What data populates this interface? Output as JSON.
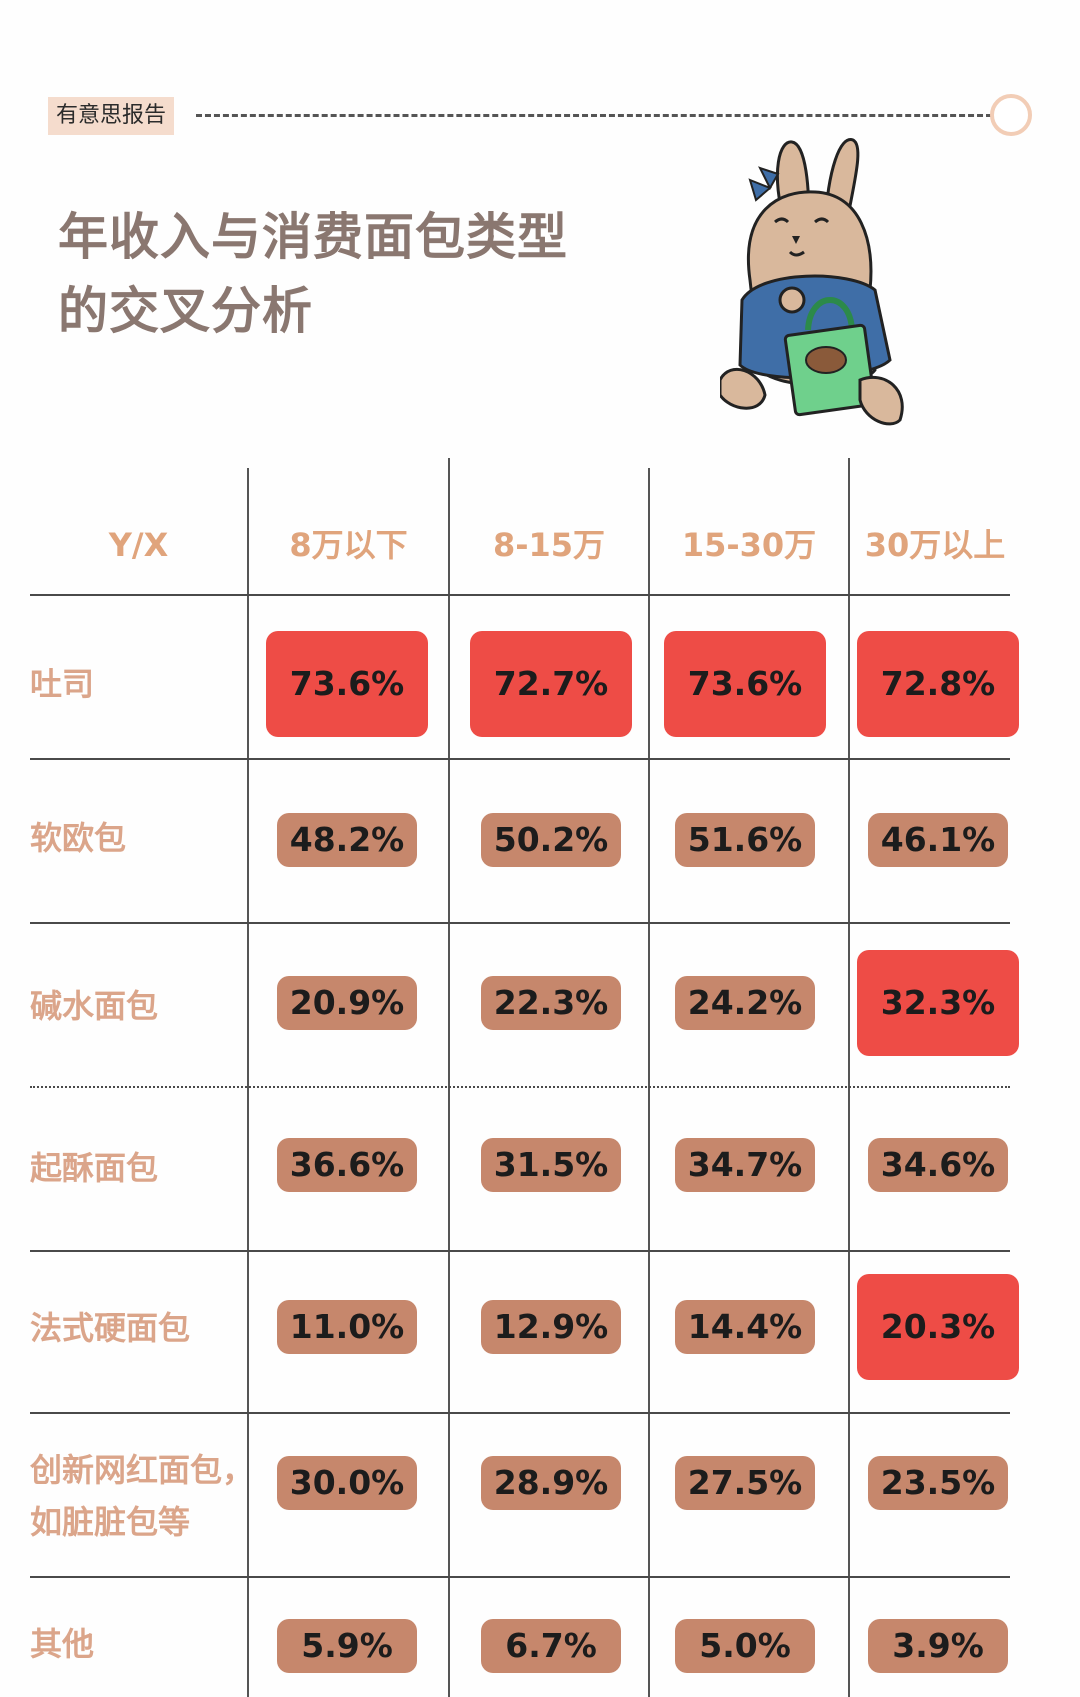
{
  "brand_tag": "有意思报告",
  "title_line1": "年收入与消费面包类型",
  "title_line2": "的交叉分析",
  "table": {
    "corner_label": "Y/X",
    "columns": [
      "8万以下",
      "8-15万",
      "15-30万",
      "30万以上"
    ],
    "rows": [
      {
        "label": "吐司",
        "values": [
          "73.6%",
          "72.7%",
          "73.6%",
          "72.8%"
        ],
        "highlight": [
          true,
          true,
          true,
          true
        ]
      },
      {
        "label": "软欧包",
        "values": [
          "48.2%",
          "50.2%",
          "51.6%",
          "46.1%"
        ],
        "highlight": [
          false,
          false,
          false,
          false
        ]
      },
      {
        "label": "碱水面包",
        "values": [
          "20.9%",
          "22.3%",
          "24.2%",
          "32.3%"
        ],
        "highlight": [
          false,
          false,
          false,
          true
        ]
      },
      {
        "label": "起酥面包",
        "values": [
          "36.6%",
          "31.5%",
          "34.7%",
          "34.6%"
        ],
        "highlight": [
          false,
          false,
          false,
          false
        ]
      },
      {
        "label": "法式硬面包",
        "values": [
          "11.0%",
          "12.9%",
          "14.4%",
          "20.3%"
        ],
        "highlight": [
          false,
          false,
          false,
          true
        ]
      },
      {
        "label_line1": "创新网红面包，",
        "label_line2": "如脏脏包等",
        "values": [
          "30.0%",
          "28.9%",
          "27.5%",
          "23.5%"
        ],
        "highlight": [
          false,
          false,
          false,
          false
        ]
      },
      {
        "label": "其他",
        "values": [
          "5.9%",
          "6.7%",
          "5.0%",
          "3.9%"
        ],
        "highlight": [
          false,
          false,
          false,
          false
        ]
      }
    ]
  },
  "colors": {
    "pill": "#c6876c",
    "highlight": "#ee4c46",
    "header_text": "#e0a47c",
    "row_label": "#dba58a",
    "title": "#8a7770"
  },
  "icons": [
    "rabbit-mascot-icon"
  ]
}
